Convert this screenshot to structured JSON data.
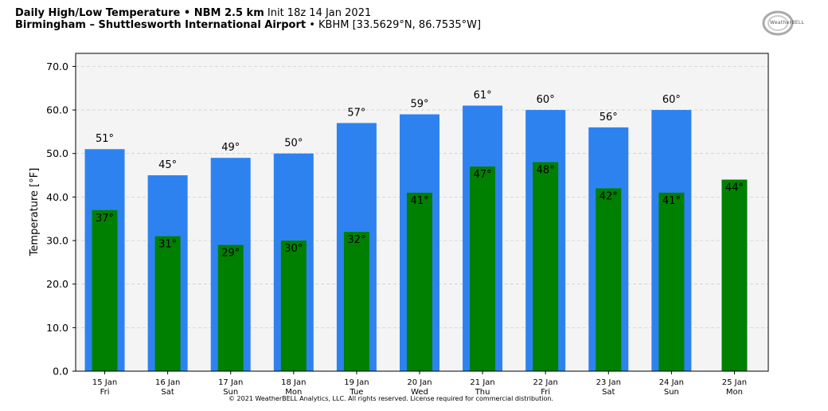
{
  "header": {
    "title_bold": "Daily High/Low Temperature • NBM 2.5 km",
    "title_init": "Init 18z 14 Jan 2021",
    "location_bold": "Birmingham – Shuttlesworth International Airport",
    "location_detail": "• KBHM [33.5629°N, 86.7535°W]"
  },
  "logo": {
    "text": "WeatherBELL"
  },
  "footer": {
    "copyright": "© 2021 WeatherBELL Analytics, LLC. All rights reserved. License required for commercial distribution."
  },
  "chart_data": {
    "type": "bar",
    "ylabel": "Temperature [°F]",
    "ylim": [
      0,
      73
    ],
    "yticks": [
      "0.0",
      "10.0",
      "20.0",
      "30.0",
      "40.0",
      "50.0",
      "60.0",
      "70.0"
    ],
    "grid": true,
    "categories": [
      {
        "date": "15 Jan",
        "day": "Fri"
      },
      {
        "date": "16 Jan",
        "day": "Sat"
      },
      {
        "date": "17 Jan",
        "day": "Sun"
      },
      {
        "date": "18 Jan",
        "day": "Mon"
      },
      {
        "date": "19 Jan",
        "day": "Tue"
      },
      {
        "date": "20 Jan",
        "day": "Wed"
      },
      {
        "date": "21 Jan",
        "day": "Thu"
      },
      {
        "date": "22 Jan",
        "day": "Fri"
      },
      {
        "date": "23 Jan",
        "day": "Sat"
      },
      {
        "date": "24 Jan",
        "day": "Sun"
      },
      {
        "date": "25 Jan",
        "day": "Mon"
      }
    ],
    "series": [
      {
        "color": "#2e82f0",
        "values": [
          51,
          45,
          49,
          50,
          57,
          59,
          61,
          60,
          56,
          60,
          null
        ],
        "labels": [
          "51°",
          "45°",
          "49°",
          "50°",
          "57°",
          "59°",
          "61°",
          "60°",
          "56°",
          "60°",
          ""
        ]
      },
      {
        "color": "#008000",
        "values": [
          37,
          31,
          29,
          30,
          32,
          41,
          47,
          48,
          42,
          41,
          44
        ],
        "labels": [
          "37°",
          "31°",
          "29°",
          "30°",
          "32°",
          "41°",
          "47°",
          "48°",
          "42°",
          "41°",
          "44°"
        ]
      }
    ]
  }
}
